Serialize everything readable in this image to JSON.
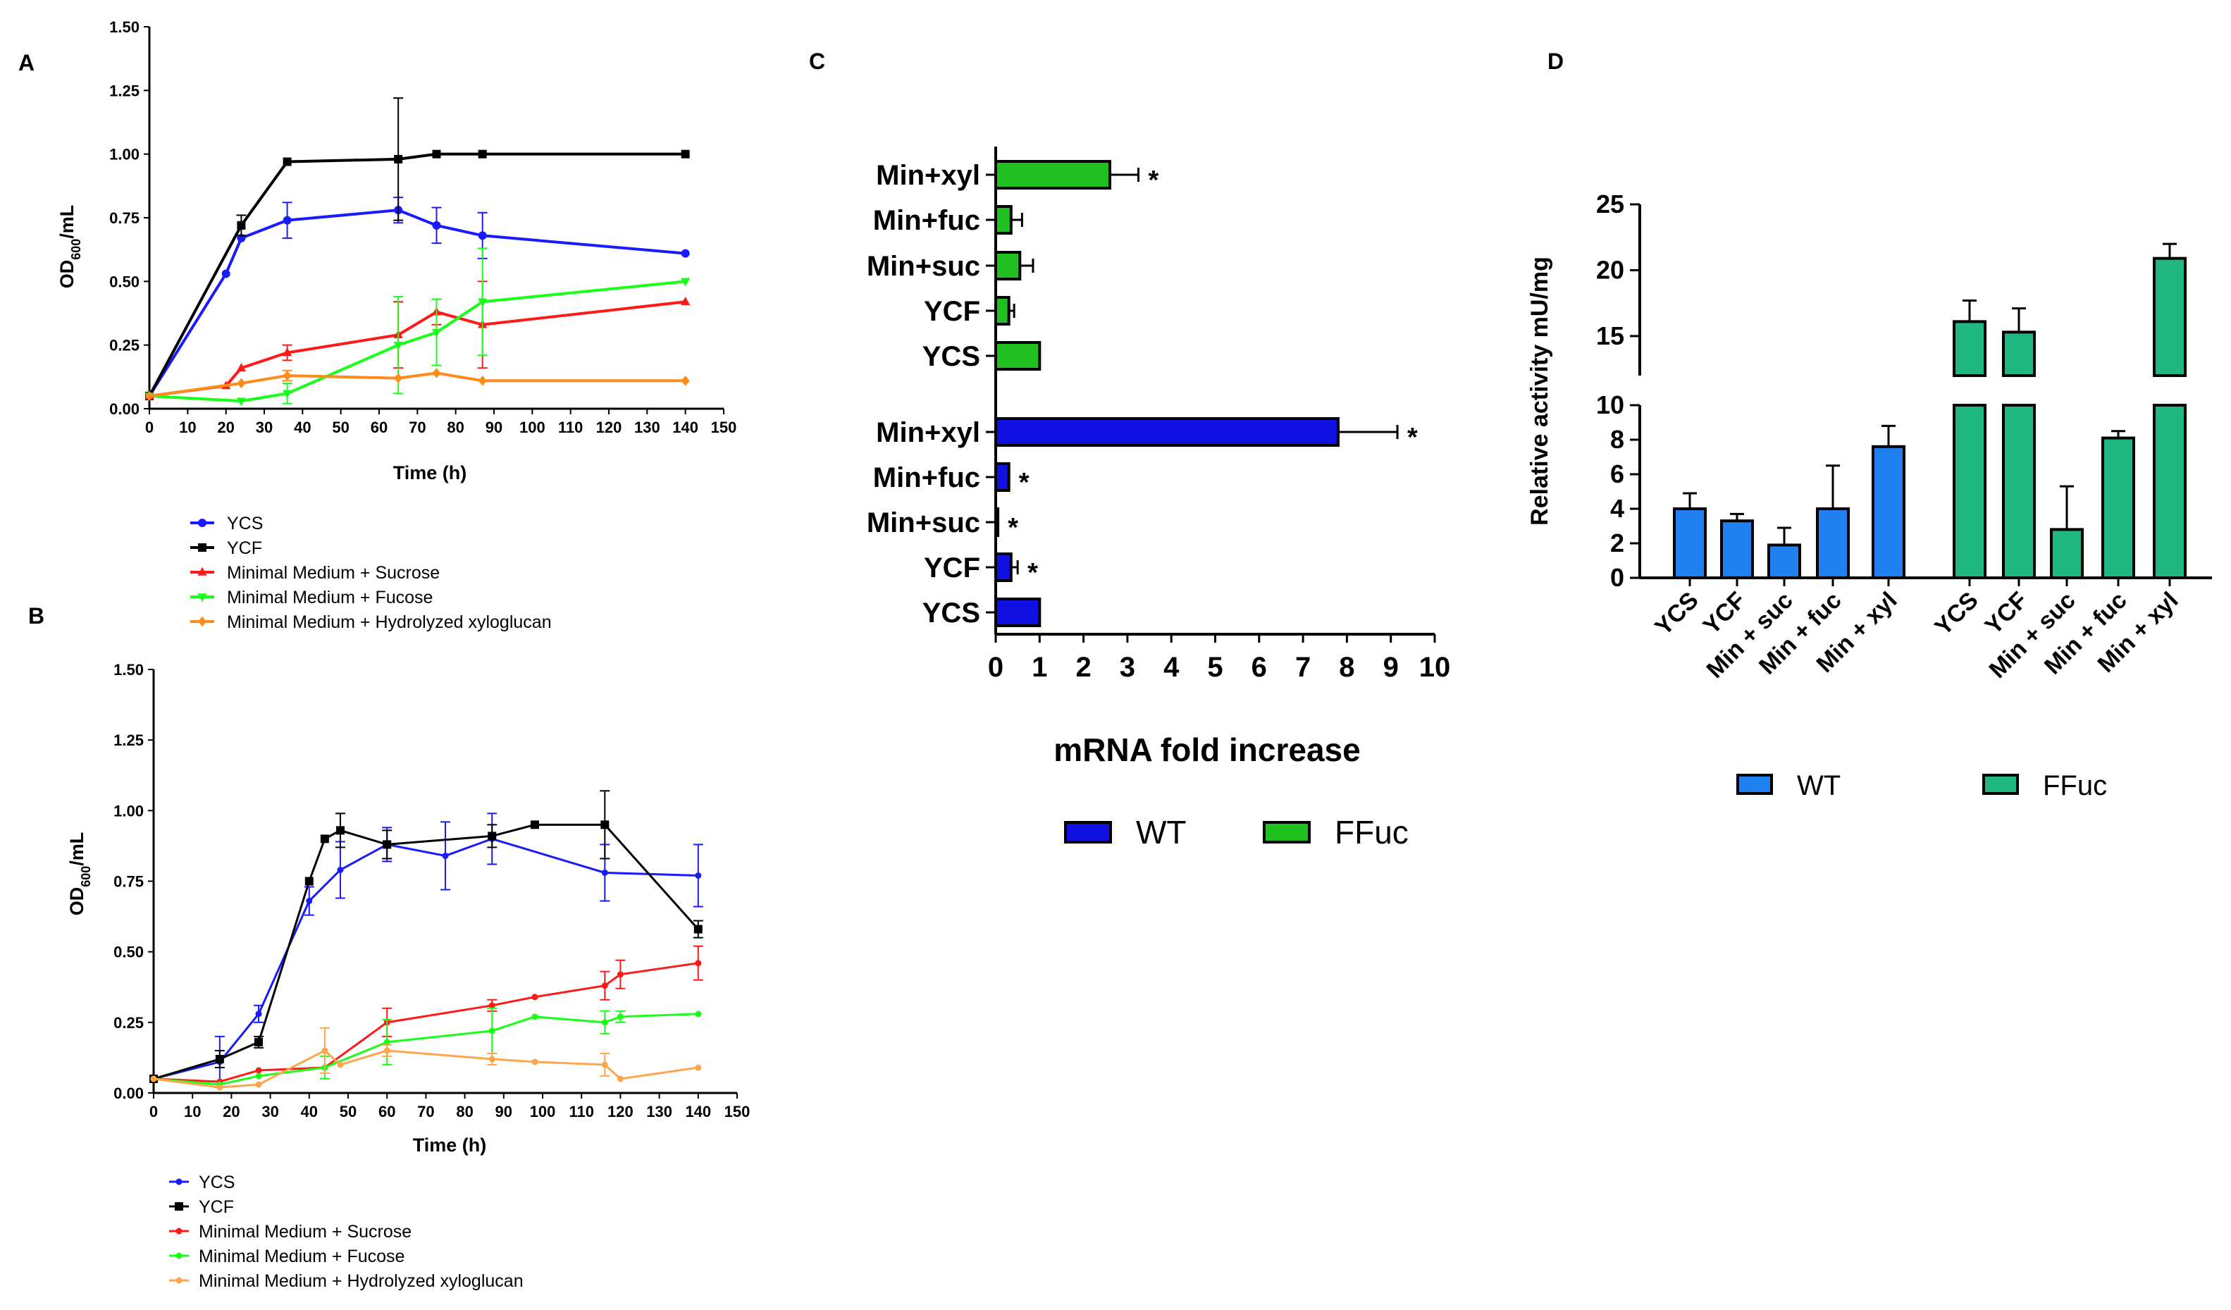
{
  "panels": {
    "a": {
      "letter": "A",
      "xlabel": "Time (h)",
      "ylabel": "OD600/mL",
      "ylabel_main": "OD",
      "ylabel_sub": "600",
      "ylabel_unit": "/mL"
    },
    "b": {
      "letter": "B",
      "xlabel": "Time (h)",
      "ylabel": "OD600/mL",
      "ylabel_main": "OD",
      "ylabel_sub": "600",
      "ylabel_unit": "/mL"
    },
    "c": {
      "letter": "C",
      "xlabel": "mRNA fold increase"
    },
    "d": {
      "letter": "D",
      "ylabel": "Relative activity mU/mg"
    }
  },
  "colors": {
    "ycs": "#1a1aff",
    "ycf": "#000000",
    "suc": "#ff1a1a",
    "fuc": "#1aff1a",
    "xyl": "#ff8c1a",
    "xyl_b": "#ffa64d",
    "c_wt": "#1010e0",
    "c_ffuc": "#20c020",
    "d_wt": "#2080f0",
    "d_ffuc": "#20b880"
  },
  "chart_data": [
    {
      "id": "A",
      "type": "line",
      "xlabel": "Time (h)",
      "ylabel": "OD600/mL",
      "xlim": [
        0,
        150
      ],
      "ylim": [
        0,
        1.5
      ],
      "xticks": [
        0,
        10,
        20,
        30,
        40,
        50,
        60,
        70,
        80,
        90,
        100,
        110,
        120,
        130,
        140,
        150
      ],
      "xtick_labels": [
        "0",
        "10",
        "20",
        "30",
        "40",
        "50",
        "60",
        "70",
        "80",
        "90",
        "100",
        "110",
        "120",
        "130",
        "140",
        "150"
      ],
      "yticks": [
        0,
        0.25,
        0.5,
        0.75,
        1.0,
        1.25,
        1.5
      ],
      "ytick_labels": [
        "0.00",
        "0.25",
        "0.50",
        "0.75",
        "1.00",
        "1.25",
        "1.50"
      ],
      "series": [
        {
          "name": "YCS",
          "key": "ycs",
          "marker": "circle",
          "x": [
            0,
            20,
            24,
            36,
            65,
            75,
            87,
            140
          ],
          "y": [
            0.05,
            0.53,
            0.67,
            0.74,
            0.78,
            0.72,
            0.68,
            0.61
          ],
          "err": [
            0,
            0,
            0,
            0.07,
            0.05,
            0.07,
            0.09,
            0
          ]
        },
        {
          "name": "YCF",
          "key": "ycf",
          "marker": "square",
          "x": [
            0,
            24,
            36,
            65,
            75,
            87,
            140
          ],
          "y": [
            0.05,
            0.72,
            0.97,
            0.98,
            1.0,
            1.0,
            1.0
          ],
          "err": [
            0,
            0.04,
            0,
            0.24,
            0,
            0,
            0
          ]
        },
        {
          "name": "Minimal Medium + Sucrose",
          "key": "suc",
          "marker": "triangle",
          "x": [
            0,
            20,
            24,
            36,
            65,
            75,
            87,
            140
          ],
          "y": [
            0.05,
            0.09,
            0.16,
            0.22,
            0.29,
            0.38,
            0.33,
            0.42
          ],
          "err": [
            0,
            0,
            0,
            0.03,
            0.13,
            0.05,
            0.17,
            0
          ]
        },
        {
          "name": "Minimal Medium + Fucose",
          "key": "fuc",
          "marker": "triangle-down",
          "x": [
            0,
            24,
            36,
            65,
            75,
            87,
            140
          ],
          "y": [
            0.05,
            0.03,
            0.06,
            0.25,
            0.3,
            0.42,
            0.5
          ],
          "err": [
            0,
            0,
            0.04,
            0.19,
            0.13,
            0.21,
            0
          ]
        },
        {
          "name": "Minimal Medium + Hydrolyzed xyloglucan",
          "key": "xyl",
          "marker": "diamond",
          "x": [
            0,
            24,
            36,
            65,
            75,
            87,
            140
          ],
          "y": [
            0.05,
            0.1,
            0.13,
            0.12,
            0.14,
            0.11,
            0.11
          ],
          "err": [
            0,
            0,
            0.02,
            0,
            0,
            0,
            0
          ]
        }
      ]
    },
    {
      "id": "B",
      "type": "line",
      "xlabel": "Time (h)",
      "ylabel": "OD600/mL",
      "xlim": [
        0,
        150
      ],
      "ylim": [
        0,
        1.5
      ],
      "xticks": [
        0,
        10,
        20,
        30,
        40,
        50,
        60,
        70,
        80,
        90,
        100,
        110,
        120,
        130,
        140,
        150
      ],
      "xtick_labels": [
        "0",
        "10",
        "20",
        "30",
        "40",
        "50",
        "60",
        "70",
        "80",
        "90",
        "100",
        "110",
        "120",
        "130",
        "140",
        "150"
      ],
      "yticks": [
        0,
        0.25,
        0.5,
        0.75,
        1.0,
        1.25,
        1.5
      ],
      "ytick_labels": [
        "0.00",
        "0.25",
        "0.50",
        "0.75",
        "1.00",
        "1.25",
        "1.50"
      ],
      "series": [
        {
          "name": "YCS",
          "key": "ycs",
          "marker": "dot",
          "x": [
            0,
            17,
            27,
            40,
            48,
            60,
            75,
            87,
            116,
            140
          ],
          "y": [
            0.05,
            0.11,
            0.28,
            0.68,
            0.79,
            0.88,
            0.84,
            0.9,
            0.78,
            0.77
          ],
          "err": [
            0,
            0.09,
            0.03,
            0.05,
            0.1,
            0.06,
            0.12,
            0.09,
            0.1,
            0.11
          ]
        },
        {
          "name": "YCF",
          "key": "ycf",
          "marker": "square",
          "x": [
            0,
            17,
            27,
            40,
            44,
            48,
            60,
            87,
            98,
            116,
            140
          ],
          "y": [
            0.05,
            0.12,
            0.18,
            0.75,
            0.9,
            0.93,
            0.88,
            0.91,
            0.95,
            0.95,
            0.58
          ],
          "err": [
            0,
            0.03,
            0.02,
            0,
            0,
            0.06,
            0.05,
            0.04,
            0,
            0.12,
            0.03
          ]
        },
        {
          "name": "Minimal Medium + Sucrose",
          "key": "suc",
          "marker": "dot",
          "x": [
            0,
            17,
            27,
            44,
            60,
            87,
            98,
            116,
            120,
            140
          ],
          "y": [
            0.05,
            0.04,
            0.08,
            0.09,
            0.25,
            0.31,
            0.34,
            0.38,
            0.42,
            0.46
          ],
          "err": [
            0,
            0,
            0,
            0,
            0.05,
            0.02,
            0,
            0.05,
            0.05,
            0.06
          ]
        },
        {
          "name": "Minimal Medium + Fucose",
          "key": "fuc",
          "marker": "dot",
          "x": [
            0,
            17,
            27,
            44,
            60,
            87,
            98,
            116,
            120,
            140
          ],
          "y": [
            0.05,
            0.03,
            0.06,
            0.09,
            0.18,
            0.22,
            0.27,
            0.25,
            0.27,
            0.28
          ],
          "err": [
            0,
            0,
            0,
            0.04,
            0.08,
            0.08,
            0,
            0.04,
            0.02,
            0
          ]
        },
        {
          "name": "Minimal Medium + Hydrolyzed xyloglucan",
          "key": "xyl_b",
          "marker": "dot",
          "x": [
            0,
            17,
            27,
            44,
            48,
            60,
            87,
            98,
            116,
            120,
            140
          ],
          "y": [
            0.05,
            0.02,
            0.03,
            0.15,
            0.1,
            0.15,
            0.12,
            0.11,
            0.1,
            0.05,
            0.09
          ],
          "err": [
            0,
            0,
            0,
            0.08,
            0,
            0.02,
            0.02,
            0,
            0.04,
            0,
            0
          ]
        }
      ]
    },
    {
      "id": "C",
      "type": "bar",
      "orientation": "horizontal",
      "xlabel": "mRNA fold increase",
      "xlim": [
        0,
        10
      ],
      "xticks": [
        0,
        1,
        2,
        3,
        4,
        5,
        6,
        7,
        8,
        9,
        10
      ],
      "xtick_labels": [
        "0",
        "1",
        "2",
        "3",
        "4",
        "5",
        "6",
        "7",
        "8",
        "9",
        "10"
      ],
      "groups": [
        {
          "name": "FFuc",
          "key": "c_ffuc",
          "categories": [
            "Min+xyl",
            "Min+fuc",
            "Min+suc",
            "YCF",
            "YCS"
          ],
          "values": [
            2.6,
            0.35,
            0.55,
            0.3,
            1.0
          ],
          "err": [
            0.65,
            0.25,
            0.3,
            0.12,
            0
          ],
          "marks": [
            "*",
            "",
            "",
            "",
            ""
          ]
        },
        {
          "name": "WT",
          "key": "c_wt",
          "categories": [
            "Min+xyl",
            "Min+fuc",
            "Min+suc",
            "YCF",
            "YCS"
          ],
          "values": [
            7.8,
            0.3,
            0.05,
            0.35,
            1.0
          ],
          "err": [
            1.35,
            0,
            0,
            0.15,
            0
          ],
          "marks": [
            "*",
            "*",
            "*",
            "*",
            ""
          ]
        }
      ],
      "legend": [
        "WT",
        "FFuc"
      ]
    },
    {
      "id": "D",
      "type": "bar",
      "ylabel": "Relative activity mU/mg",
      "axis_break": {
        "lower": [
          0,
          10
        ],
        "upper": [
          12,
          25
        ]
      },
      "yticks_lower": [
        0,
        2,
        4,
        6,
        8,
        10
      ],
      "ytick_labels_lower": [
        "0",
        "2",
        "4",
        "6",
        "8",
        "10"
      ],
      "yticks_upper": [
        15,
        20,
        25
      ],
      "ytick_labels_upper": [
        "15",
        "20",
        "25"
      ],
      "categories": [
        "YCS",
        "YCF",
        "Min + suc",
        "Min + fuc",
        "Min + xyl"
      ],
      "series": [
        {
          "name": "WT",
          "key": "d_wt",
          "values": [
            4.0,
            3.3,
            1.9,
            4.0,
            7.6
          ],
          "err": [
            0.9,
            0.4,
            1.0,
            2.5,
            1.2
          ]
        },
        {
          "name": "FFuc",
          "key": "d_ffuc",
          "values": [
            16.1,
            15.3,
            2.8,
            8.1,
            20.9
          ],
          "err": [
            1.6,
            1.8,
            2.5,
            0.4,
            1.1
          ]
        }
      ],
      "legend": [
        "WT",
        "FFuc"
      ]
    }
  ]
}
